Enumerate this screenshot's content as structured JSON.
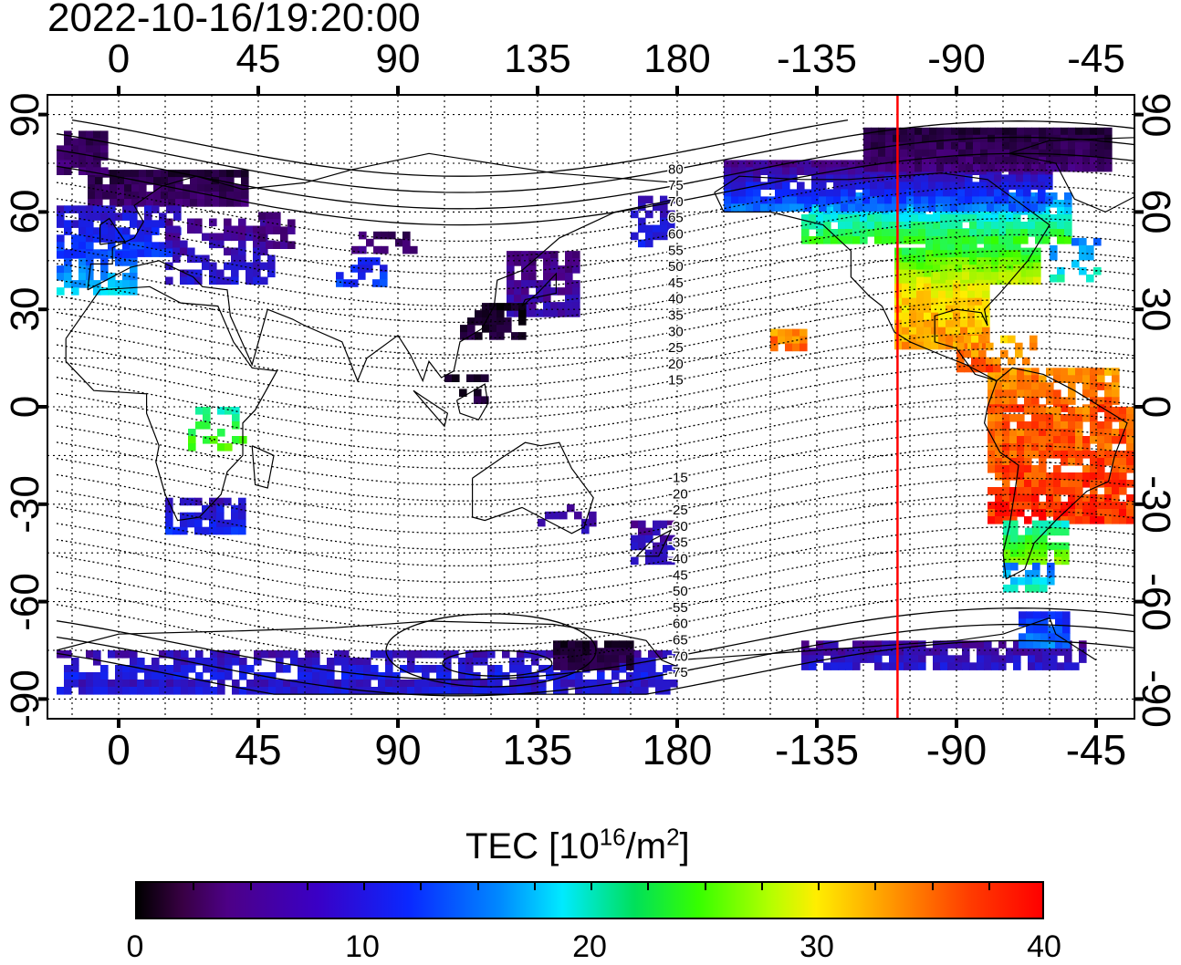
{
  "timestamp": "2022-10-16/19:20:00",
  "x_ticks": [
    "0",
    "45",
    "90",
    "135",
    "180",
    "-135",
    "-90",
    "-45"
  ],
  "y_ticks": [
    "90",
    "60",
    "30",
    "0",
    "-30",
    "-60",
    "-90"
  ],
  "y_ticks_right": [
    "90",
    "60",
    "30",
    "0",
    "-30",
    "-60",
    "-90"
  ],
  "contour_labels": [
    "80",
    "75",
    "70",
    "65",
    "60",
    "55",
    "50",
    "45",
    "40",
    "35",
    "30",
    "25",
    "20",
    "15",
    "-15",
    "-20",
    "-25",
    "-30",
    "-35",
    "-40",
    "-45",
    "-50",
    "-55",
    "-60",
    "-65",
    "-70",
    "-75"
  ],
  "colorbar": {
    "title_main": "TEC  [10",
    "title_sup1": "16",
    "title_mid": "/m",
    "title_sup2": "2",
    "title_end": "]",
    "ticks": [
      "0",
      "10",
      "20",
      "30",
      "40"
    ],
    "colors": [
      "#000000",
      "#4d0086",
      "#0a28ff",
      "#00eaff",
      "#36ff00",
      "#ffee00",
      "#ff0000"
    ]
  },
  "chart_data": {
    "type": "heatmap",
    "title": "2022-10-16/19:20:00",
    "xlabel": "",
    "ylabel": "",
    "x_ticks": [
      "0",
      "45",
      "90",
      "135",
      "180",
      "-135",
      "-90",
      "-45"
    ],
    "y_ticks": [
      "90",
      "60",
      "30",
      "0",
      "-30",
      "-60",
      "-90"
    ],
    "xlim": [
      -20,
      330
    ],
    "ylim": [
      -90,
      90
    ],
    "grid": true,
    "colorbar_label": "TEC [10^16/m^2]",
    "colorbar_range": [
      0,
      40
    ],
    "marker_longitude": -109,
    "marker_color": "#ff0000"
  }
}
